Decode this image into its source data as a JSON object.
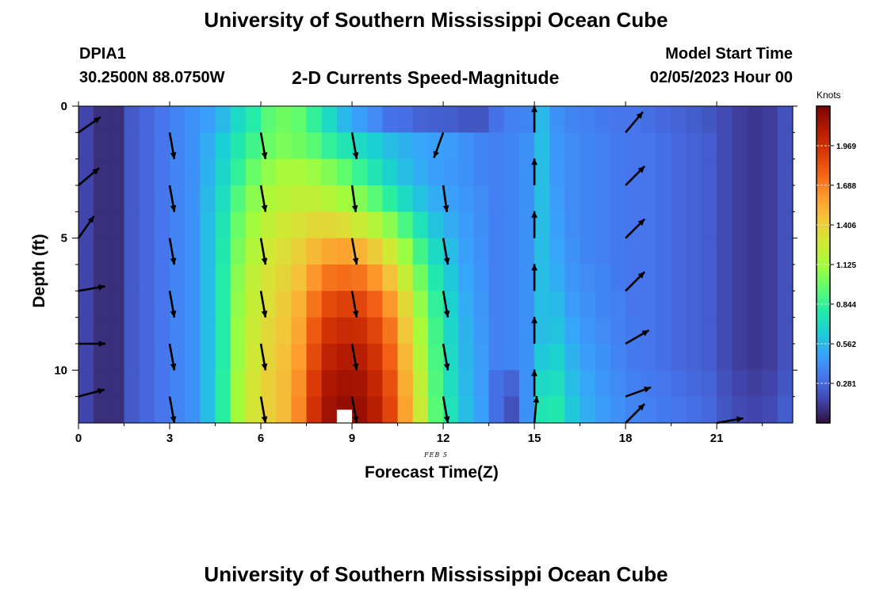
{
  "header": {
    "title": "University of Southern Mississippi Ocean Cube",
    "station": "DPIA1",
    "coords": "30.2500N  88.0750W",
    "subtitle": "2-D Currents Speed-Magnitude",
    "model_start_label": "Model Start Time",
    "model_start_value": "02/05/2023 Hour 00"
  },
  "footer": {
    "title_repeat": "University of Southern Mississippi Ocean Cube"
  },
  "chart_data": {
    "type": "heatmap",
    "title": "2-D Currents Speed-Magnitude",
    "xlabel": "Forecast Time(Z)",
    "ylabel": "Depth (ft)",
    "x_annotation": "FEB 5",
    "xlim": [
      0,
      23.5
    ],
    "ylim": [
      0,
      12
    ],
    "y_inverted": true,
    "x_ticks": [
      0,
      3,
      6,
      9,
      12,
      15,
      18,
      21
    ],
    "y_ticks": [
      0,
      5,
      10
    ],
    "hours": [
      0,
      0.5,
      1,
      1.5,
      2,
      2.5,
      3,
      3.5,
      4,
      4.5,
      5,
      5.5,
      6,
      6.5,
      7,
      7.5,
      8,
      8.5,
      9,
      9.5,
      10,
      10.5,
      11,
      11.5,
      12,
      12.5,
      13,
      13.5,
      14,
      14.5,
      15,
      15.5,
      16,
      16.5,
      17,
      17.5,
      18,
      18.5,
      19,
      19.5,
      20,
      20.5,
      21,
      21.5,
      22,
      22.5,
      23
    ],
    "depth_rows": [
      [
        0,
        1
      ],
      [
        1,
        2
      ],
      [
        2,
        3
      ],
      [
        3,
        4
      ],
      [
        4,
        5
      ],
      [
        5,
        6
      ],
      [
        6,
        7
      ],
      [
        7,
        8
      ],
      [
        8,
        9
      ],
      [
        9,
        10
      ],
      [
        10,
        11
      ],
      [
        11,
        12
      ]
    ],
    "speed_knots": [
      [
        0.16,
        0.09,
        0.09,
        0.23,
        0.28,
        0.32,
        0.38,
        0.42,
        0.47,
        0.56,
        0.7,
        0.8,
        0.94,
        1.0,
        0.96,
        0.84,
        0.7,
        0.56,
        0.47,
        0.4,
        0.31,
        0.3,
        0.26,
        0.25,
        0.24,
        0.22,
        0.22,
        0.31,
        0.36,
        0.38,
        0.56,
        0.42,
        0.38,
        0.36,
        0.34,
        0.32,
        0.32,
        0.3,
        0.28,
        0.26,
        0.24,
        0.22,
        0.18,
        0.14,
        0.12,
        0.14,
        0.2
      ],
      [
        0.16,
        0.09,
        0.09,
        0.23,
        0.28,
        0.32,
        0.38,
        0.42,
        0.52,
        0.64,
        0.78,
        0.88,
        0.98,
        1.03,
        1.0,
        0.94,
        0.84,
        0.76,
        0.7,
        0.65,
        0.58,
        0.54,
        0.5,
        0.48,
        0.46,
        0.42,
        0.38,
        0.36,
        0.38,
        0.42,
        0.58,
        0.44,
        0.4,
        0.38,
        0.36,
        0.34,
        0.32,
        0.32,
        0.3,
        0.28,
        0.26,
        0.24,
        0.18,
        0.14,
        0.12,
        0.14,
        0.2
      ],
      [
        0.16,
        0.09,
        0.09,
        0.23,
        0.28,
        0.32,
        0.38,
        0.42,
        0.54,
        0.68,
        0.84,
        0.98,
        1.08,
        1.14,
        1.14,
        1.1,
        1.04,
        0.96,
        0.86,
        0.76,
        0.66,
        0.58,
        0.52,
        0.47,
        0.45,
        0.42,
        0.38,
        0.36,
        0.38,
        0.42,
        0.58,
        0.45,
        0.4,
        0.38,
        0.36,
        0.34,
        0.32,
        0.32,
        0.3,
        0.28,
        0.26,
        0.24,
        0.18,
        0.14,
        0.12,
        0.14,
        0.2
      ],
      [
        0.16,
        0.09,
        0.09,
        0.23,
        0.28,
        0.32,
        0.38,
        0.42,
        0.56,
        0.72,
        0.92,
        1.06,
        1.16,
        1.2,
        1.22,
        1.22,
        1.18,
        1.12,
        1.04,
        0.94,
        0.82,
        0.7,
        0.6,
        0.52,
        0.48,
        0.44,
        0.4,
        0.36,
        0.38,
        0.42,
        0.58,
        0.46,
        0.4,
        0.38,
        0.36,
        0.34,
        0.32,
        0.32,
        0.3,
        0.28,
        0.26,
        0.24,
        0.18,
        0.14,
        0.12,
        0.14,
        0.2
      ],
      [
        0.16,
        0.09,
        0.09,
        0.23,
        0.28,
        0.32,
        0.38,
        0.42,
        0.58,
        0.76,
        0.98,
        1.12,
        1.22,
        1.28,
        1.32,
        1.36,
        1.36,
        1.34,
        1.26,
        1.18,
        1.06,
        0.9,
        0.74,
        0.6,
        0.52,
        0.46,
        0.41,
        0.36,
        0.38,
        0.42,
        0.58,
        0.48,
        0.4,
        0.38,
        0.36,
        0.34,
        0.32,
        0.32,
        0.3,
        0.28,
        0.26,
        0.24,
        0.18,
        0.14,
        0.12,
        0.14,
        0.2
      ],
      [
        0.16,
        0.09,
        0.09,
        0.23,
        0.28,
        0.32,
        0.38,
        0.42,
        0.58,
        0.78,
        1.02,
        1.18,
        1.28,
        1.34,
        1.4,
        1.5,
        1.56,
        1.58,
        1.52,
        1.42,
        1.28,
        1.1,
        0.88,
        0.7,
        0.58,
        0.48,
        0.42,
        0.36,
        0.38,
        0.42,
        0.58,
        0.5,
        0.42,
        0.38,
        0.36,
        0.34,
        0.32,
        0.32,
        0.3,
        0.28,
        0.26,
        0.24,
        0.18,
        0.14,
        0.12,
        0.14,
        0.2
      ],
      [
        0.16,
        0.09,
        0.09,
        0.23,
        0.28,
        0.32,
        0.38,
        0.42,
        0.58,
        0.8,
        1.06,
        1.22,
        1.32,
        1.38,
        1.46,
        1.62,
        1.72,
        1.74,
        1.72,
        1.62,
        1.46,
        1.24,
        1.0,
        0.78,
        0.62,
        0.5,
        0.43,
        0.36,
        0.38,
        0.42,
        0.58,
        0.52,
        0.44,
        0.4,
        0.38,
        0.34,
        0.32,
        0.32,
        0.3,
        0.28,
        0.26,
        0.24,
        0.18,
        0.14,
        0.12,
        0.14,
        0.2
      ],
      [
        0.16,
        0.09,
        0.09,
        0.23,
        0.28,
        0.32,
        0.38,
        0.42,
        0.58,
        0.8,
        1.08,
        1.24,
        1.34,
        1.42,
        1.52,
        1.72,
        1.86,
        1.9,
        1.88,
        1.78,
        1.62,
        1.36,
        1.08,
        0.84,
        0.66,
        0.52,
        0.44,
        0.36,
        0.38,
        0.42,
        0.58,
        0.56,
        0.46,
        0.42,
        0.38,
        0.36,
        0.32,
        0.32,
        0.3,
        0.28,
        0.26,
        0.24,
        0.18,
        0.14,
        0.12,
        0.14,
        0.2
      ],
      [
        0.16,
        0.09,
        0.09,
        0.23,
        0.28,
        0.32,
        0.38,
        0.42,
        0.58,
        0.8,
        1.1,
        1.26,
        1.36,
        1.44,
        1.56,
        1.8,
        1.96,
        2.0,
        1.98,
        1.88,
        1.72,
        1.44,
        1.14,
        0.88,
        0.68,
        0.54,
        0.45,
        0.36,
        0.38,
        0.42,
        0.58,
        0.6,
        0.5,
        0.44,
        0.4,
        0.36,
        0.34,
        0.32,
        0.3,
        0.28,
        0.26,
        0.24,
        0.18,
        0.14,
        0.12,
        0.14,
        0.2
      ],
      [
        0.16,
        0.09,
        0.09,
        0.23,
        0.28,
        0.32,
        0.38,
        0.42,
        0.58,
        0.8,
        1.1,
        1.28,
        1.38,
        1.46,
        1.6,
        1.86,
        2.04,
        2.08,
        2.06,
        1.96,
        1.78,
        1.5,
        1.18,
        0.9,
        0.7,
        0.55,
        0.46,
        0.36,
        0.38,
        0.42,
        0.62,
        0.66,
        0.54,
        0.46,
        0.42,
        0.38,
        0.34,
        0.32,
        0.3,
        0.28,
        0.26,
        0.24,
        0.18,
        0.14,
        0.12,
        0.14,
        0.2
      ],
      [
        0.16,
        0.09,
        0.09,
        0.23,
        0.28,
        0.32,
        0.38,
        0.42,
        0.58,
        0.82,
        1.12,
        1.3,
        1.4,
        1.48,
        1.64,
        1.92,
        2.1,
        2.14,
        2.12,
        2.02,
        1.84,
        1.54,
        1.22,
        0.92,
        0.72,
        0.56,
        0.46,
        0.3,
        0.26,
        0.42,
        0.7,
        0.72,
        0.58,
        0.5,
        0.44,
        0.4,
        0.36,
        0.34,
        0.32,
        0.3,
        0.28,
        0.26,
        0.2,
        0.16,
        0.14,
        0.16,
        0.22
      ],
      [
        0.16,
        0.09,
        0.09,
        0.23,
        0.28,
        0.32,
        0.38,
        0.42,
        0.58,
        0.82,
        1.12,
        1.3,
        1.4,
        1.48,
        1.66,
        1.96,
        2.14,
        2.18,
        2.16,
        2.06,
        1.88,
        1.58,
        1.26,
        0.94,
        0.74,
        0.58,
        0.48,
        0.3,
        0.2,
        0.42,
        0.76,
        0.78,
        0.62,
        0.52,
        0.46,
        0.42,
        0.38,
        0.36,
        0.34,
        0.32,
        0.3,
        0.28,
        0.22,
        0.18,
        0.16,
        0.18,
        0.24
      ]
    ],
    "missing_cells": [
      {
        "hour": 8.5,
        "depth": [
          11.5,
          12
        ]
      }
    ],
    "vector_hours": [
      0,
      3,
      6,
      9,
      12,
      15,
      18,
      21
    ],
    "vector_depths": [
      1,
      3,
      5,
      7,
      9,
      11,
      12
    ],
    "vectors_deg": [
      [
        55,
        170,
        170,
        170,
        200,
        0,
        40
      ],
      [
        50,
        170,
        170,
        172,
        172,
        0,
        45
      ],
      [
        35,
        170,
        170,
        170,
        170,
        0,
        45
      ],
      [
        80,
        170,
        170,
        170,
        170,
        0,
        45
      ],
      [
        90,
        170,
        170,
        170,
        170,
        0,
        60
      ],
      [
        75,
        170,
        170,
        170,
        170,
        0,
        70
      ],
      [
        null,
        null,
        null,
        null,
        null,
        5,
        45,
        80
      ]
    ],
    "colorbar": {
      "label": "Knots",
      "min": 0,
      "max": 2.25,
      "ticks": [
        "1.969",
        "1.688",
        "1.406",
        "1.125",
        "0.844",
        "0.562",
        "0.281"
      ],
      "tick_values": [
        1.969,
        1.688,
        1.406,
        1.125,
        0.844,
        0.562,
        0.281
      ],
      "colors": [
        "#30123b",
        "#4145ab",
        "#4675ed",
        "#39a2fc",
        "#1bcfd4",
        "#24eca6",
        "#61fc6c",
        "#a4fc3b",
        "#d1e834",
        "#f3c63a",
        "#fe9b2d",
        "#f36315",
        "#d93806",
        "#b11901",
        "#7a0403"
      ]
    },
    "grid": false,
    "legend": "right"
  }
}
